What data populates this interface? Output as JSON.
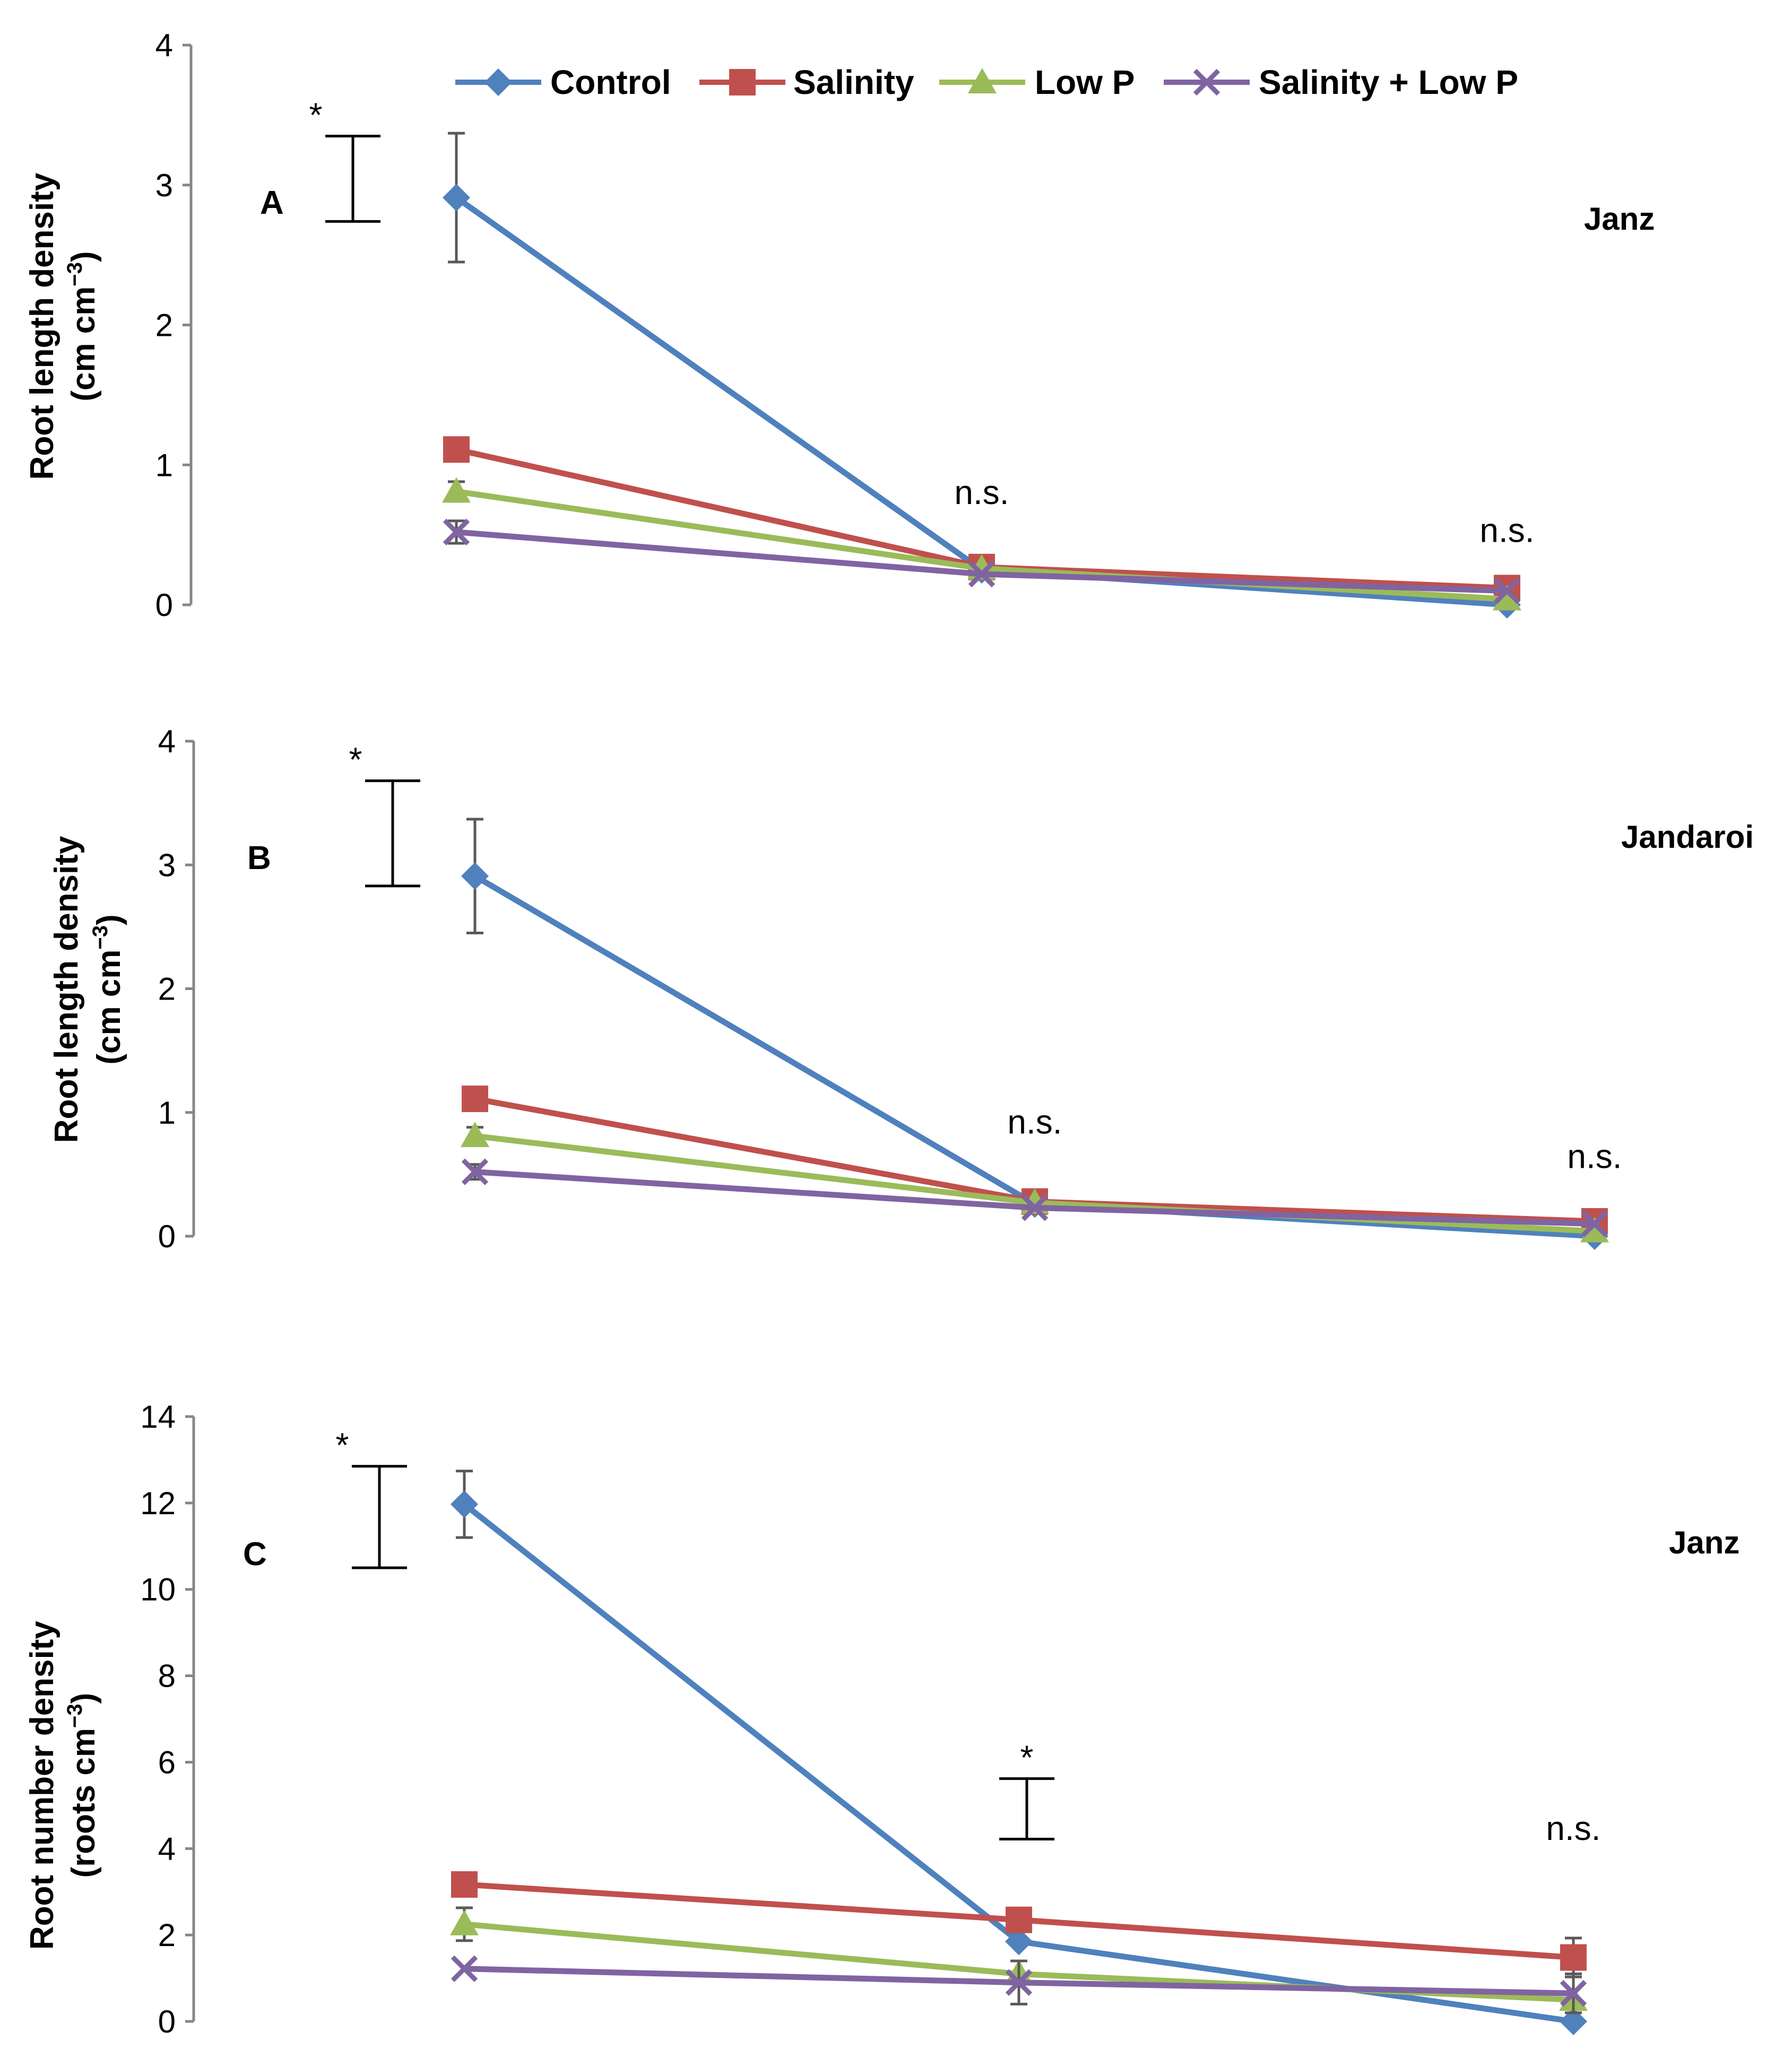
{
  "legend": {
    "items": [
      {
        "name": "Control",
        "color": "#4f81bd",
        "marker": "diamond"
      },
      {
        "name": "Salinity",
        "color": "#c0504d",
        "marker": "square"
      },
      {
        "name": "Low P",
        "color": "#9bbb59",
        "marker": "triangle"
      },
      {
        "name": "Salinity + Low P",
        "color": "#8064a2",
        "marker": "x"
      }
    ]
  },
  "chart_data": [
    {
      "type": "line",
      "panel_label": "A",
      "cultivar": "Janz",
      "ylabel_line1": "Root length density",
      "ylabel_line2": "(cm cm",
      "ylabel_sup": "−3",
      "ylabel_close": ")",
      "ylim": [
        0,
        4
      ],
      "yticks": [
        0,
        1,
        2,
        3,
        4
      ],
      "x": [
        1,
        2,
        3
      ],
      "series": [
        {
          "name": "Control",
          "values": [
            2.91,
            0.25,
            0.0
          ],
          "err": [
            0.46,
            null,
            null
          ]
        },
        {
          "name": "Salinity",
          "values": [
            1.11,
            0.27,
            0.12
          ],
          "err": [
            null,
            null,
            null
          ]
        },
        {
          "name": "Low P",
          "values": [
            0.81,
            0.26,
            0.04
          ],
          "err": [
            0.07,
            null,
            null
          ]
        },
        {
          "name": "Salinity + Low P",
          "values": [
            0.52,
            0.22,
            0.1
          ],
          "err": [
            0.08,
            null,
            null
          ]
        }
      ],
      "lsd": {
        "low": 2.74,
        "high": 3.35,
        "mark": "*"
      },
      "annotations": [
        {
          "x": 2,
          "text": "n.s.",
          "y": 0.72
        },
        {
          "x": 3,
          "text": "n.s.",
          "y": 0.45
        }
      ]
    },
    {
      "type": "line",
      "panel_label": "B",
      "cultivar": "Jandaroi",
      "ylabel_line1": "Root length density",
      "ylabel_line2": "(cm cm",
      "ylabel_sup": "−3",
      "ylabel_close": ")",
      "ylim": [
        0,
        4
      ],
      "yticks": [
        0,
        1,
        2,
        3,
        4
      ],
      "x": [
        1,
        2,
        3
      ],
      "series": [
        {
          "name": "Control",
          "values": [
            2.91,
            0.26,
            0.0
          ],
          "err": [
            0.46,
            null,
            null
          ]
        },
        {
          "name": "Salinity",
          "values": [
            1.11,
            0.28,
            0.12
          ],
          "err": [
            null,
            null,
            null
          ]
        },
        {
          "name": "Low P",
          "values": [
            0.81,
            0.27,
            0.04
          ],
          "err": [
            0.07,
            null,
            null
          ]
        },
        {
          "name": "Salinity + Low P",
          "values": [
            0.52,
            0.23,
            0.1
          ],
          "err": [
            0.06,
            null,
            null
          ]
        }
      ],
      "lsd": {
        "low": 2.83,
        "high": 3.68,
        "mark": "*"
      },
      "annotations": [
        {
          "x": 2,
          "text": "n.s.",
          "y": 0.83
        },
        {
          "x": 3,
          "text": "n.s.",
          "y": 0.55
        }
      ]
    },
    {
      "type": "line",
      "panel_label": "C",
      "cultivar": "Janz",
      "ylabel_line1": "Root number density",
      "ylabel_line2": "(roots cm",
      "ylabel_sup": "−3",
      "ylabel_close": ")",
      "ylim": [
        0,
        14
      ],
      "yticks": [
        0,
        2,
        4,
        6,
        8,
        10,
        12,
        14
      ],
      "x": [
        1,
        2,
        3
      ],
      "series": [
        {
          "name": "Control",
          "values": [
            11.97,
            1.85,
            0.0
          ],
          "err": [
            0.77,
            null,
            null
          ]
        },
        {
          "name": "Salinity",
          "values": [
            3.17,
            2.35,
            1.48
          ],
          "err": [
            null,
            null,
            0.45
          ]
        },
        {
          "name": "Low P",
          "values": [
            2.25,
            1.1,
            0.5
          ],
          "err": [
            0.38,
            null,
            null
          ]
        },
        {
          "name": "Salinity + Low P",
          "values": [
            1.22,
            0.9,
            0.65
          ],
          "err": [
            null,
            0.5,
            0.45
          ]
        }
      ],
      "lsd": [
        {
          "x": 0.5,
          "low": 10.5,
          "high": 12.85,
          "mark": "*"
        },
        {
          "x": 2.0,
          "low": 4.22,
          "high": 5.62,
          "mark": "*"
        }
      ],
      "annotations": [
        {
          "x": 3,
          "text": "n.s.",
          "y": 4.2
        }
      ]
    }
  ]
}
